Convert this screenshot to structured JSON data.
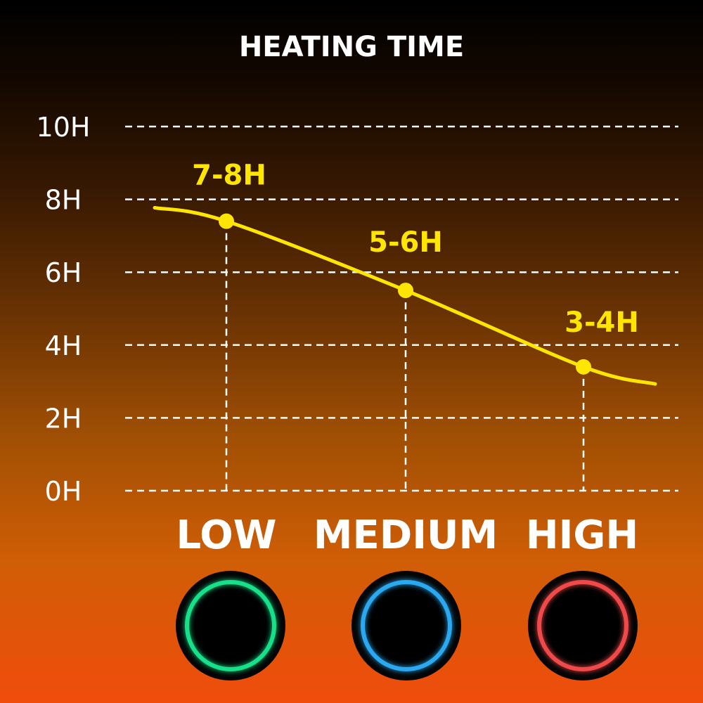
{
  "chart_data": {
    "type": "line",
    "title": "HEATING TIME",
    "categories": [
      "LOW",
      "MEDIUM",
      "HIGH"
    ],
    "values": [
      7.4,
      5.5,
      3.4
    ],
    "data_labels": [
      "7-8H",
      "5-6H",
      "3-4H"
    ],
    "ylim": [
      0,
      10
    ],
    "yticks": [
      0,
      2,
      4,
      6,
      8,
      10
    ],
    "ytick_labels": [
      "0H",
      "2H",
      "4H",
      "6H",
      "8H",
      "10H"
    ],
    "grid": true,
    "line_color": "#ffe600",
    "indicator_colors": [
      "#19e08a",
      "#2aa8f0",
      "#f04848"
    ]
  }
}
